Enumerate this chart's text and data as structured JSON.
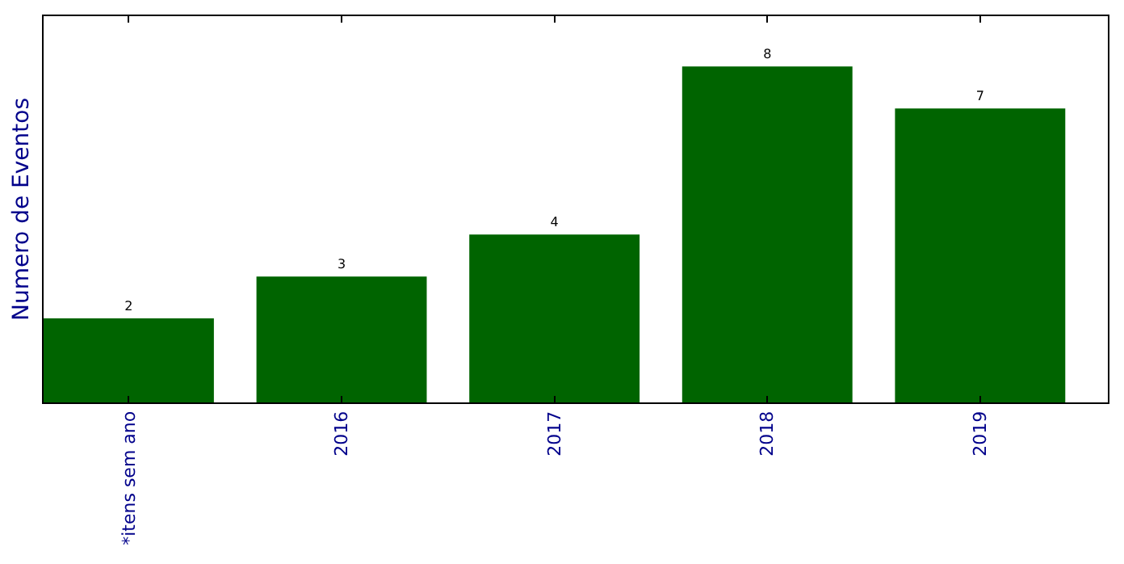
{
  "chart_data": {
    "type": "bar",
    "ylabel": "Numero de Eventos",
    "categories": [
      "*itens sem ano",
      "2016",
      "2017",
      "2018",
      "2019"
    ],
    "values": [
      2,
      3,
      4,
      8,
      7
    ],
    "color": "#006400",
    "ylim": [
      0,
      9.2
    ],
    "data_labels": true,
    "tick_labels": "x"
  }
}
